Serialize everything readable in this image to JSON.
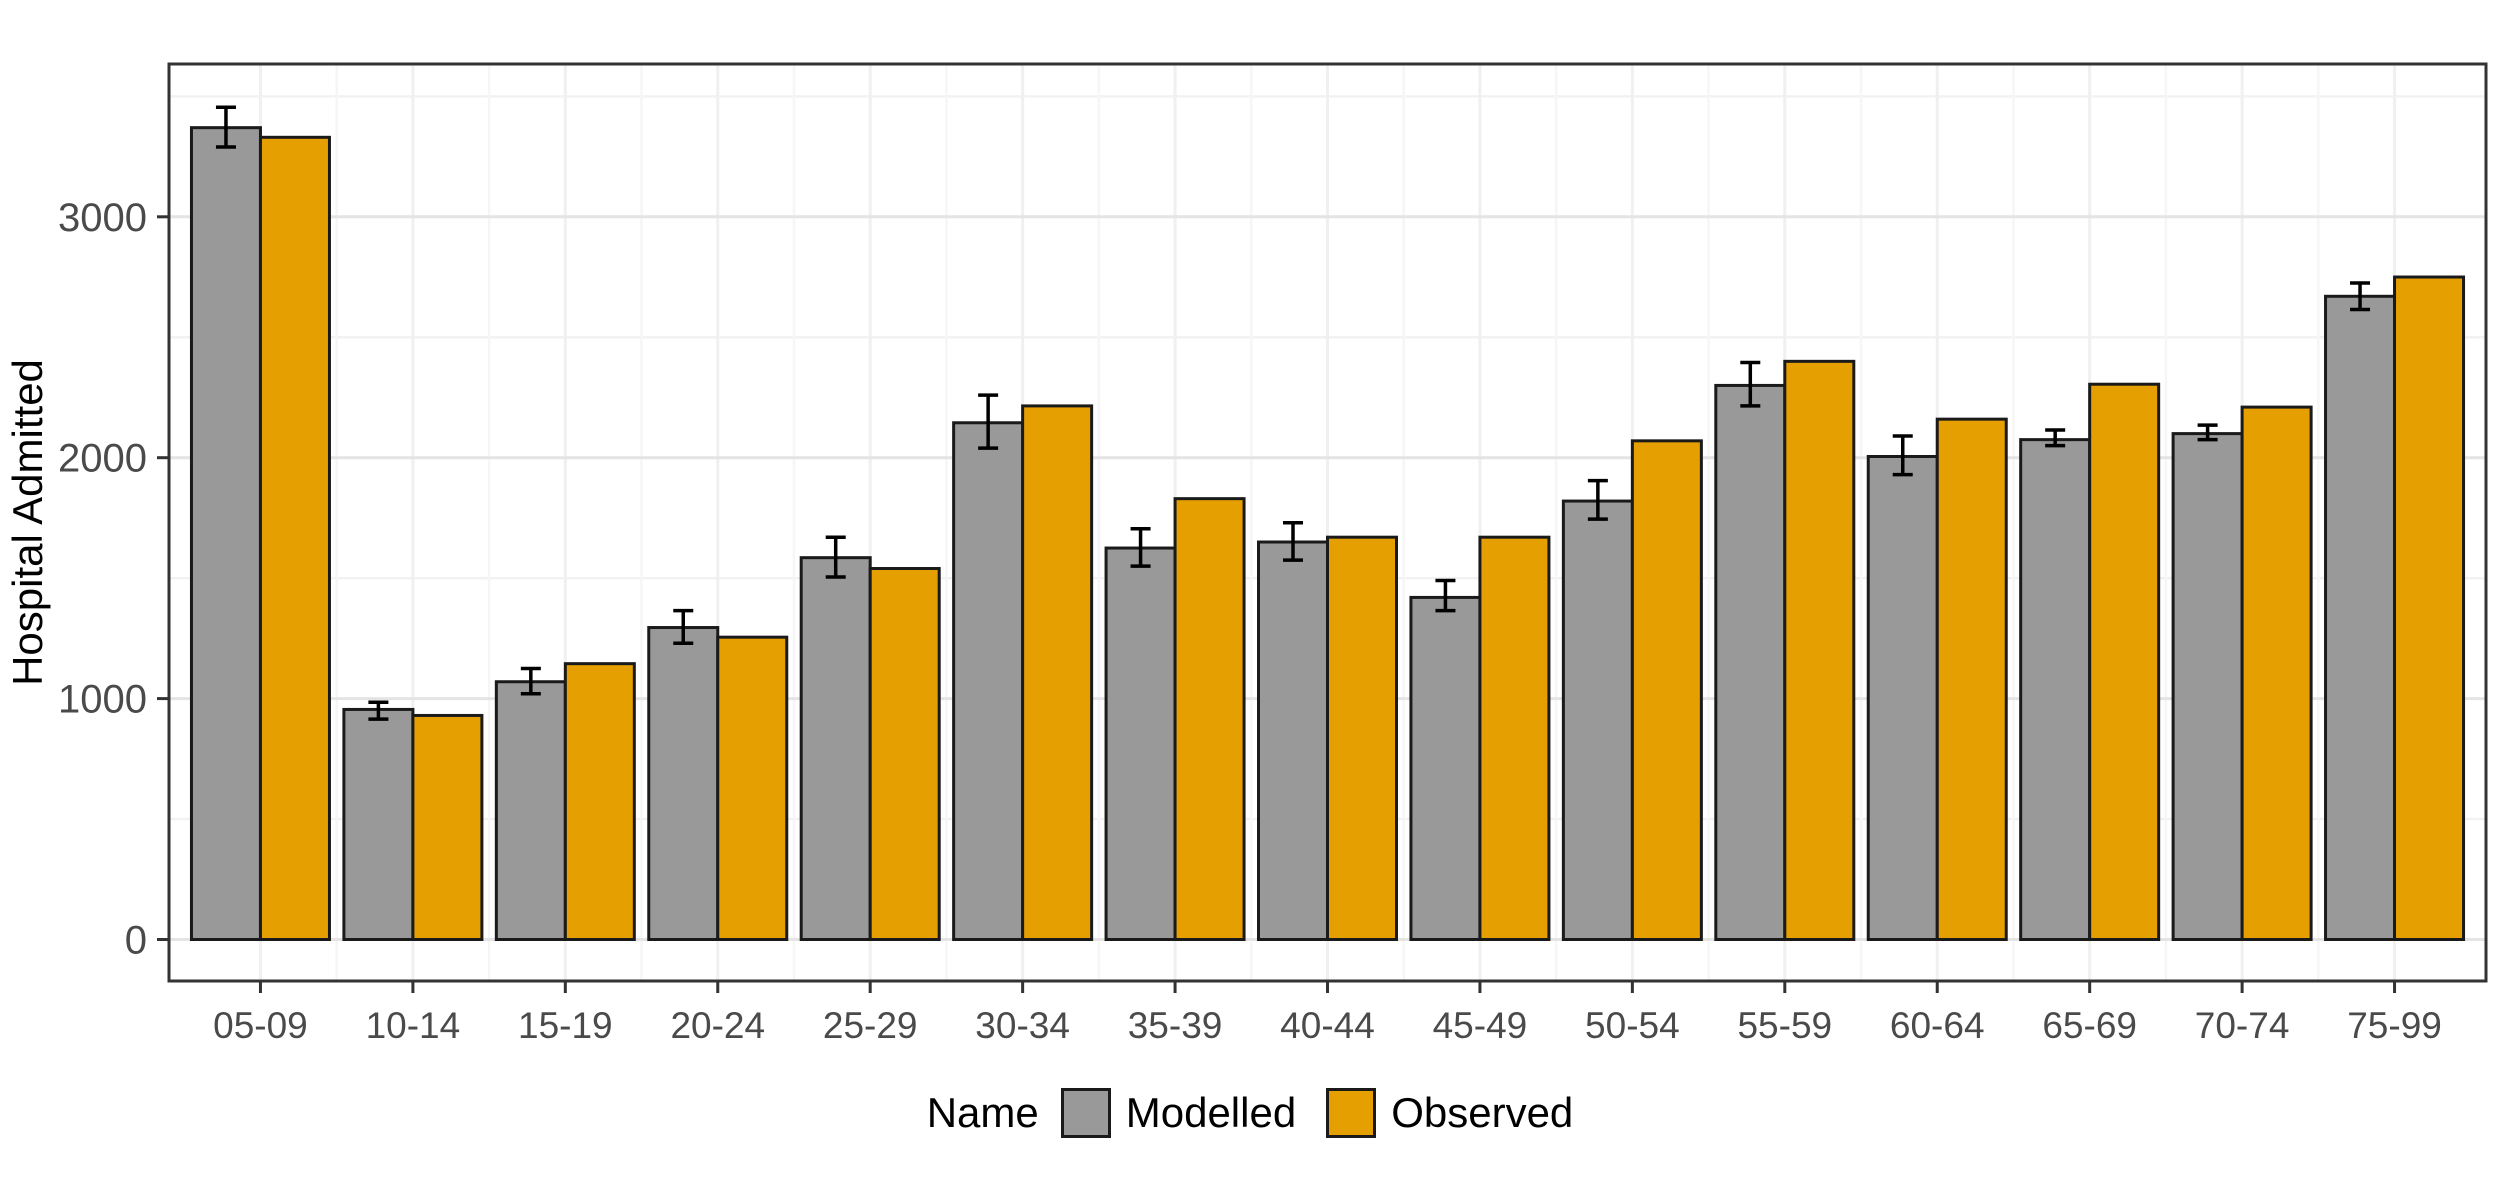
{
  "chart_data": {
    "type": "bar",
    "title": "",
    "xlabel": "",
    "ylabel": "Hospital Admitted",
    "legend_title": "Name",
    "legend_position": "bottom",
    "grid": true,
    "categories": [
      "05-09",
      "10-14",
      "15-19",
      "20-24",
      "25-29",
      "30-34",
      "35-39",
      "40-44",
      "45-49",
      "50-54",
      "55-59",
      "60-64",
      "65-69",
      "70-74",
      "75-99"
    ],
    "series": [
      {
        "name": "Modelled",
        "color": "#999999",
        "values": [
          3370,
          955,
          1070,
          1295,
          1585,
          2145,
          1625,
          1650,
          1420,
          1820,
          2300,
          2005,
          2075,
          2100,
          2670
        ],
        "error_low": [
          3290,
          915,
          1020,
          1230,
          1505,
          2040,
          1550,
          1575,
          1365,
          1745,
          2215,
          1930,
          2050,
          2075,
          2615
        ],
        "error_high": [
          3455,
          985,
          1125,
          1365,
          1670,
          2260,
          1705,
          1730,
          1490,
          1905,
          2395,
          2090,
          2115,
          2135,
          2725
        ]
      },
      {
        "name": "Observed",
        "color": "#E69F00",
        "values": [
          3330,
          930,
          1145,
          1255,
          1540,
          2215,
          1830,
          1670,
          1670,
          2070,
          2400,
          2160,
          2305,
          2210,
          2750
        ]
      }
    ],
    "yticks": [
      0,
      1000,
      2000,
      3000
    ],
    "ylim": [
      0,
      3640
    ],
    "bar_outline_color": "#1a1a1a",
    "errorbar_color": "#000000",
    "axis_text_color": "#4a4a4a",
    "panel_border_color": "#333333",
    "grid_major_color": "#e4e4e4",
    "grid_minor_color": "#f2f2f2"
  }
}
